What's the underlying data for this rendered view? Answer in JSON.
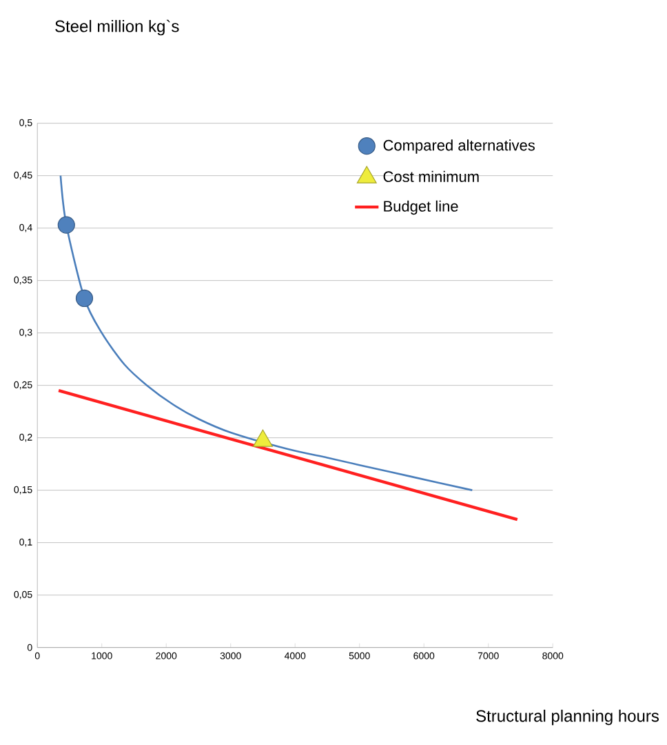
{
  "chart_data": {
    "type": "line",
    "xlabel": "Structural planning hours",
    "annotations": [
      "Steel million kg`s"
    ],
    "xlim": [
      0,
      8000
    ],
    "xticks": [
      0,
      1000,
      2000,
      3000,
      4000,
      5000,
      6000,
      7000,
      8000
    ],
    "ylim": [
      0,
      0.5
    ],
    "yticks": [
      0,
      {
        "value": 0.05,
        "label": "0,05"
      },
      {
        "value": 0.1,
        "label": "0,1"
      },
      {
        "value": 0.15,
        "label": "0,15"
      },
      {
        "value": 0.2,
        "label": "0,2"
      },
      {
        "value": 0.25,
        "label": "0,25"
      },
      {
        "value": 0.3,
        "label": "0,3"
      },
      {
        "value": 0.35,
        "label": "0,35"
      },
      {
        "value": 0.4,
        "label": "0,4"
      },
      {
        "value": 0.45,
        "label": "0,45"
      },
      {
        "value": 0.5,
        "label": "0,5"
      }
    ],
    "grid": "y",
    "legend": "top right",
    "series": [
      {
        "color": "#4a7ebb",
        "marker": "none",
        "x": [
          360,
          450,
          730,
          1000,
          1350,
          1700,
          2100,
          2500,
          3000,
          3900,
          4500,
          5000,
          5800,
          6750
        ],
        "values": [
          0.45,
          0.403,
          0.333,
          0.3,
          0.27,
          0.25,
          0.232,
          0.218,
          0.205,
          0.189,
          0.181,
          0.174,
          0.163,
          0.15
        ]
      },
      {
        "name": "Compared alternatives",
        "type": "scatter",
        "marker": "circle",
        "color": "#4f81bd",
        "x": [
          450,
          730
        ],
        "values": [
          0.403,
          0.333
        ]
      },
      {
        "name": "Cost minimum",
        "type": "scatter",
        "marker": "triangle",
        "color": "#eeec3c",
        "x": [
          3500
        ],
        "values": [
          0.197
        ]
      },
      {
        "name": "Budget line",
        "marker": "none",
        "color": "#ff2020",
        "x": [
          330,
          7450
        ],
        "values": [
          0.245,
          0.122
        ]
      }
    ]
  }
}
